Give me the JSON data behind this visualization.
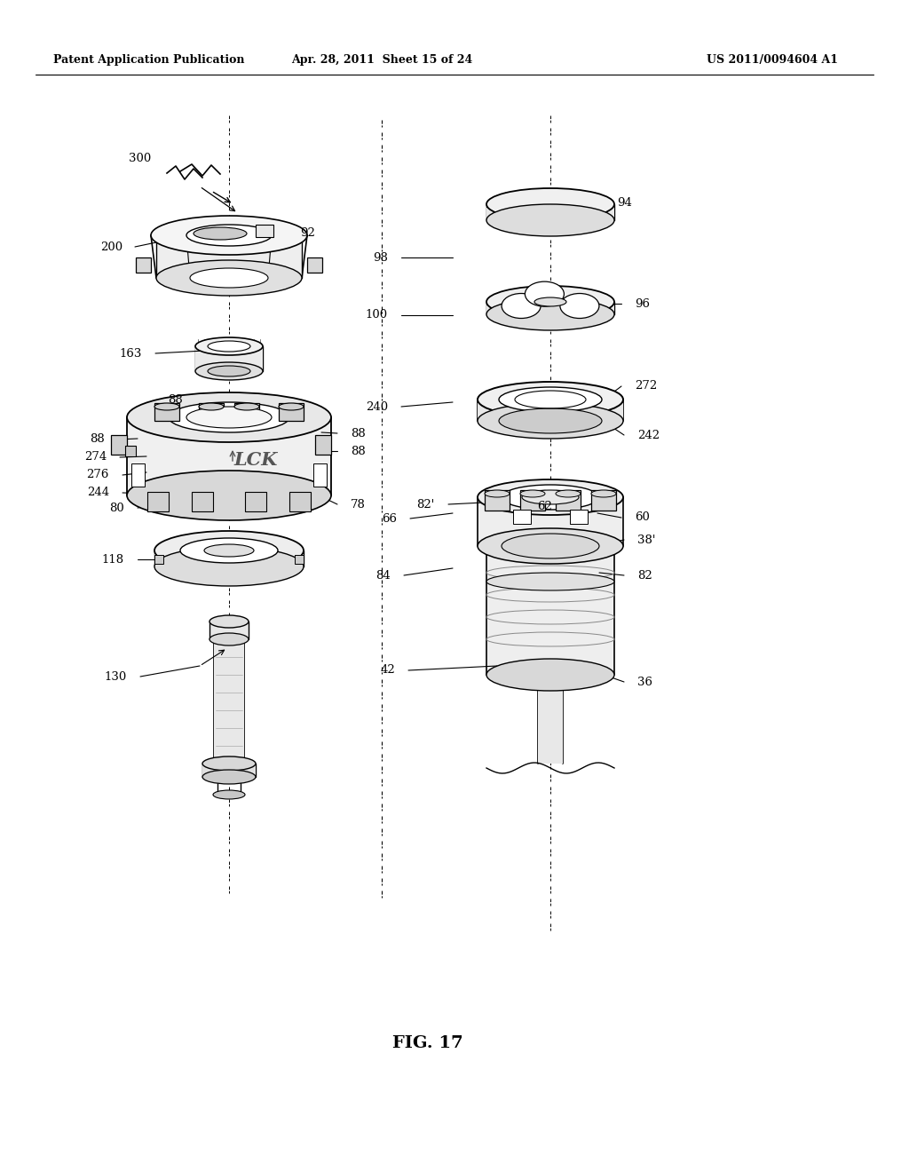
{
  "bg_color": "#ffffff",
  "header_left": "Patent Application Publication",
  "header_mid": "Apr. 28, 2011  Sheet 15 of 24",
  "header_right": "US 2011/0094604 A1",
  "figure_label": "FIG. 17",
  "lc": "#000000",
  "figw": 10.24,
  "figh": 13.2,
  "dpi": 100
}
